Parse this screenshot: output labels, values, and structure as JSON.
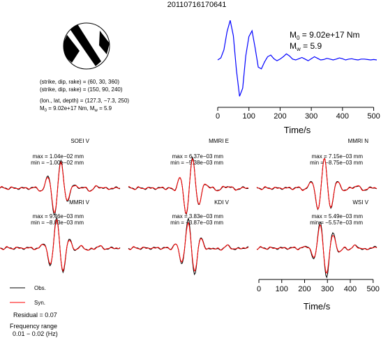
{
  "event_id": "20110716170641",
  "mechanism": {
    "lines": [
      "(strike, dip, rake) = (60, 30, 360)",
      "(strike, dip, rake) = (150, 90, 240)",
      "(lon., lat, depth) = (127.3, −7.3, 250)"
    ],
    "m0_mw": {
      "m0_value": "9.02e+17 Nm",
      "mw_value": "5.9"
    }
  },
  "stf": {
    "m0_label": {
      "base": "M",
      "sub": "0",
      "rest": " = 9.02e+17 Nm"
    },
    "mw_label": {
      "base": "M",
      "sub": "w",
      "rest": " = 5.9"
    }
  },
  "colors": {
    "obs": "#000000",
    "syn": "#ff0000",
    "stf": "#0000ff"
  },
  "legend": {
    "obs": "Obs.",
    "syn": "Syn."
  },
  "residual": "Residual = 0.07",
  "frequency": {
    "label": "Frequency range",
    "range": "0.01 − 0.02 (Hz)"
  },
  "chart_data": [
    {
      "type": "line",
      "name": "source-time-function",
      "xlabel": "Time/s",
      "ylabel": "",
      "xlim": [
        0,
        510
      ],
      "xticks": [
        0,
        100,
        200,
        300,
        400,
        500
      ],
      "series": [
        {
          "name": "",
          "x": [
            0,
            10,
            20,
            30,
            40,
            50,
            60,
            70,
            80,
            90,
            100,
            110,
            120,
            130,
            140,
            150,
            160,
            170,
            180,
            190,
            200,
            210,
            220,
            230,
            240,
            250,
            260,
            270,
            280,
            290,
            300,
            310,
            320,
            330,
            340,
            350,
            360,
            370,
            380,
            390,
            400,
            410,
            420,
            430,
            440,
            450,
            460,
            470,
            480,
            490,
            500,
            510
          ],
          "y": [
            0,
            0.05,
            0.25,
            0.7,
            0.98,
            0.6,
            -0.25,
            -0.9,
            -0.7,
            0.1,
            0.58,
            0.72,
            0.3,
            -0.18,
            -0.22,
            -0.05,
            0.08,
            0.12,
            0.03,
            -0.02,
            0.02,
            0.08,
            0.15,
            0.1,
            0.02,
            0,
            0.03,
            0.06,
            0.02,
            -0.02,
            0.03,
            0.08,
            0.04,
            0,
            0.01,
            0.04,
            0.02,
            0,
            0.02,
            0.05,
            0.03,
            0,
            0.02,
            0.03,
            0.01,
            0,
            0.02,
            0.02,
            0.01,
            0,
            0.01,
            0
          ]
        }
      ]
    },
    {
      "type": "line",
      "name": "waveform-comparison",
      "xlabel": "Time/s",
      "xlim": [
        0,
        510
      ],
      "xticks": [
        0,
        100,
        200,
        300,
        400,
        500
      ],
      "legend": [
        "Obs.",
        "Syn."
      ],
      "panels": [
        {
          "station": "SOEI V",
          "max": "max = 1.04e−02 mm",
          "min": "min = −1.00e−02 mm"
        },
        {
          "station": "MMRI E",
          "max": "max = 6.37e−03 mm",
          "min": "min = −5.38e−03 mm"
        },
        {
          "station": "MMRI N",
          "max": "max = 7.15e−03 mm",
          "min": "min = −8.75e−03 mm"
        },
        {
          "station": "MMRI V",
          "max": "max = 9.46e−03 mm",
          "min": "min = −8.83e−03 mm"
        },
        {
          "station": "KDI V",
          "max": "max = 3.83e−03 mm",
          "min": "min = −3.87e−03 mm"
        },
        {
          "station": "WSI V",
          "max": "max = 5.49e−03 mm",
          "min": "min = −5.57e−03 mm"
        }
      ]
    }
  ]
}
